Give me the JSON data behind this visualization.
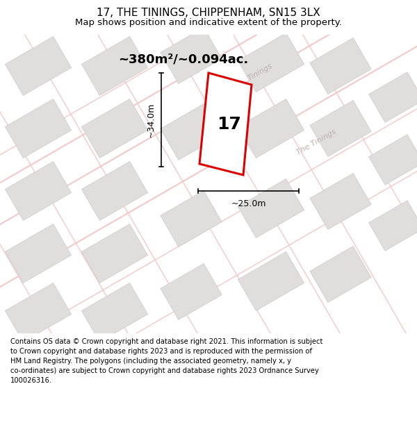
{
  "title_line1": "17, THE TININGS, CHIPPENHAM, SN15 3LX",
  "title_line2": "Map shows position and indicative extent of the property.",
  "area_label": "~380m²/~0.094ac.",
  "width_label": "~25.0m",
  "height_label": "~34.0m",
  "plot_number": "17",
  "street_label1": "Tinings",
  "street_label2": "The Tinings",
  "footer_text": "Contains OS data © Crown copyright and database right 2021. This information is subject to Crown copyright and database rights 2023 and is reproduced with the permission of HM Land Registry. The polygons (including the associated geometry, namely x, y co-ordinates) are subject to Crown copyright and database rights 2023 Ordnance Survey 100026316.",
  "bg_color": "#ffffff",
  "map_bg": "#f8f7f7",
  "road_color": "#f5c8c8",
  "building_fill": "#e0dddd",
  "building_outline": "#ccc9c9",
  "plot_outline": "#dd0000",
  "plot_fill": "#ffffff",
  "dim_color": "#000000",
  "street_color": "#c0b0b0",
  "title_fontsize": 11,
  "subtitle_fontsize": 9.5,
  "footer_fontsize": 7.2,
  "road_lw": 1.0,
  "road_lw_thick": 1.5,
  "plot_lw": 2.2
}
